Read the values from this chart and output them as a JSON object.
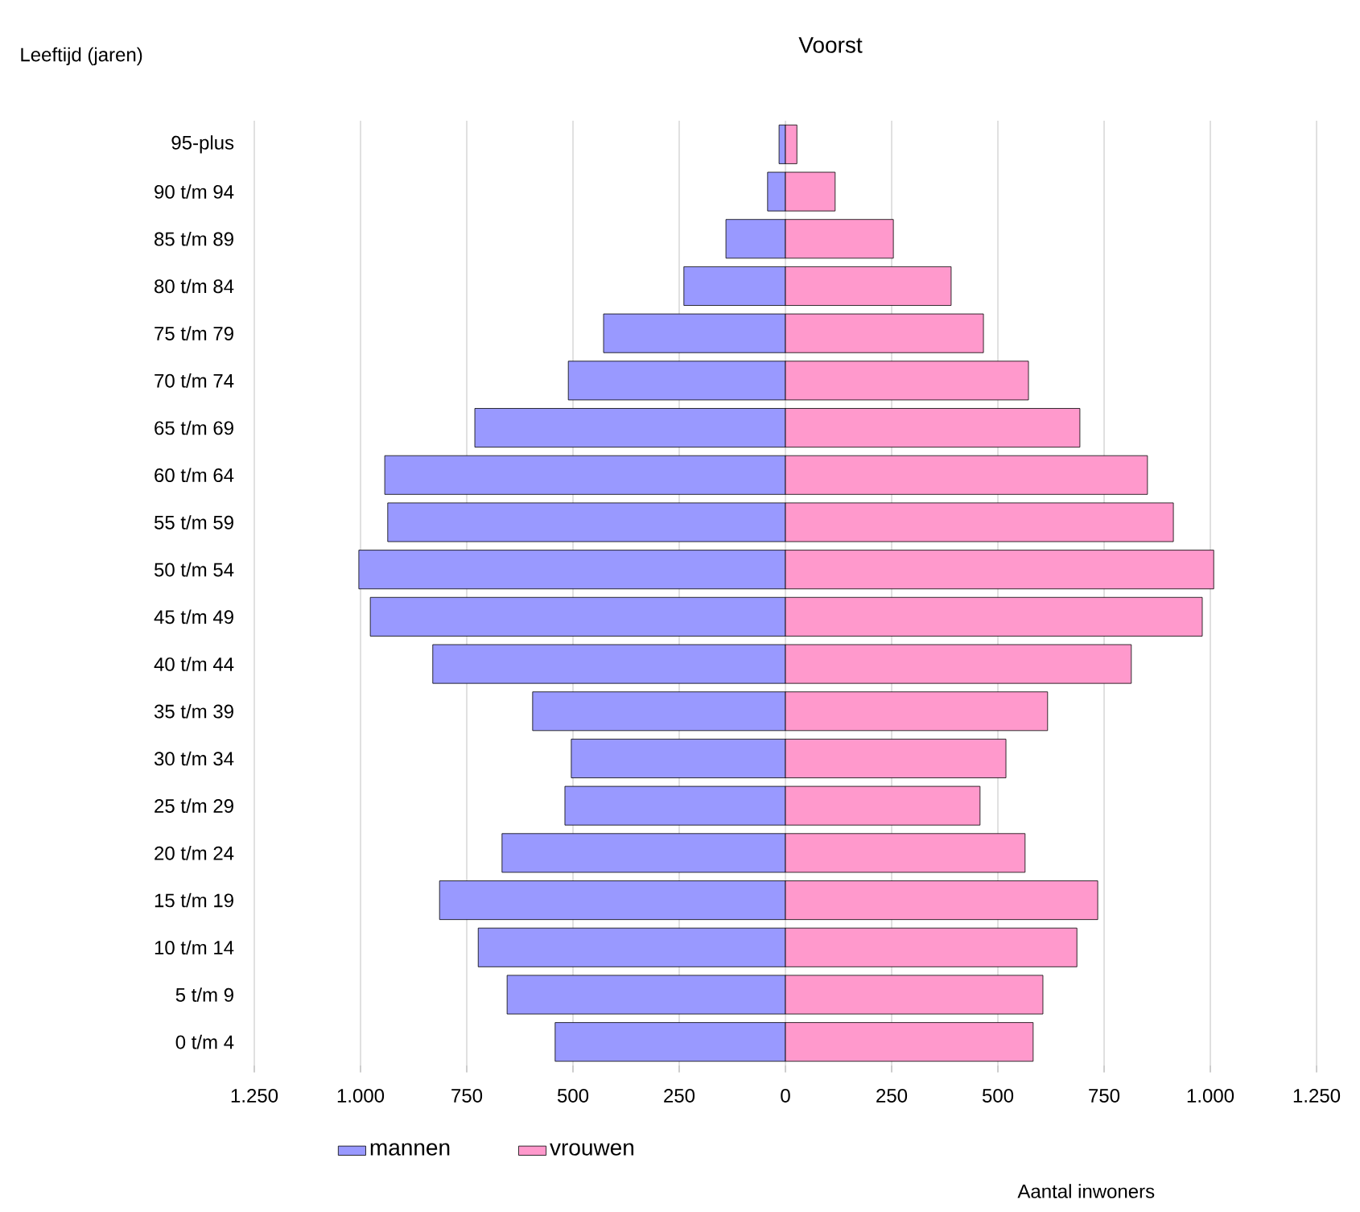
{
  "chart_data": {
    "type": "bar",
    "orientation": "horizontal",
    "title": "Voorst",
    "ylabel": "Leeftijd (jaren)",
    "categories": [
      "95-plus",
      "90 t/m 94",
      "85 t/m 89",
      "80 t/m 84",
      "75 t/m 79",
      "70 t/m 74",
      "65 t/m 69",
      "60 t/m 64",
      "55 t/m 59",
      "50 t/m 54",
      "45 t/m 49",
      "40 t/m 44",
      "35 t/m 39",
      "30 t/m 34",
      "25 t/m 29",
      "20 t/m 24",
      "15 t/m 19",
      "10 t/m 14",
      "5 t/m 9",
      "0 t/m 4"
    ],
    "series": [
      {
        "name": "mannen",
        "color": "#9999ff",
        "values": [
          -15,
          -42,
          -140,
          -239,
          -428,
          -511,
          -731,
          -943,
          -936,
          -1004,
          -977,
          -830,
          -595,
          -504,
          -519,
          -667,
          -814,
          -723,
          -655,
          -542
        ]
      },
      {
        "name": "vrouwen",
        "color": "#ff99cc",
        "values": [
          27,
          117,
          254,
          390,
          466,
          572,
          693,
          852,
          913,
          1008,
          981,
          814,
          617,
          519,
          458,
          564,
          735,
          686,
          606,
          583
        ]
      }
    ],
    "xlim": [
      -1250,
      1250
    ],
    "xticks": [
      {
        "value": -1250,
        "label": "1.250"
      },
      {
        "value": -1000,
        "label": "1.000"
      },
      {
        "value": -750,
        "label": "750"
      },
      {
        "value": -500,
        "label": "500"
      },
      {
        "value": -250,
        "label": "250"
      },
      0,
      250,
      500,
      750,
      {
        "value": 1000,
        "label": "1.000"
      },
      {
        "value": 1250,
        "label": "1.250"
      }
    ],
    "grid": "x",
    "legend": "bottom",
    "stacked": true,
    "annotations": [
      "Aantal inwoners"
    ]
  }
}
